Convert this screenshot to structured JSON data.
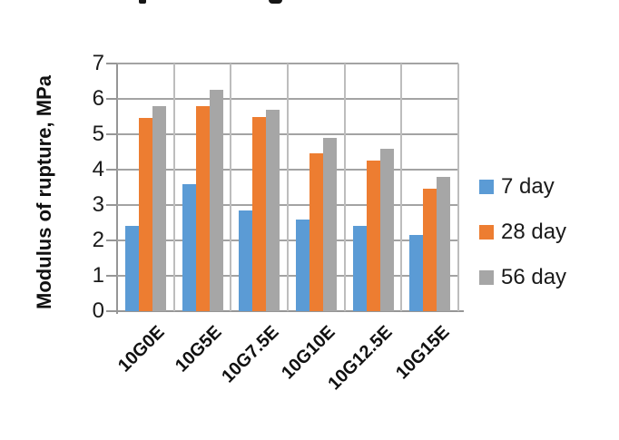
{
  "figure": {
    "background": "#ffffff"
  },
  "chart_data": {
    "type": "bar",
    "title": "",
    "xlabel": "",
    "ylabel": "Modulus of rupture, MPa",
    "categories": [
      "10G0E",
      "10G5E",
      "10G7.5E",
      "10G10E",
      "10G12.5E",
      "10G15E"
    ],
    "series": [
      {
        "name": "7 day",
        "color": "#5B9BD5",
        "values": [
          2.4,
          3.6,
          2.85,
          2.6,
          2.4,
          2.15
        ]
      },
      {
        "name": "28 day",
        "color": "#ED7D31",
        "values": [
          5.45,
          5.8,
          5.5,
          4.45,
          4.25,
          3.45
        ]
      },
      {
        "name": "56 day",
        "color": "#A6A6A6",
        "values": [
          5.8,
          6.25,
          5.7,
          4.9,
          4.6,
          3.8
        ]
      }
    ],
    "ylim": [
      0,
      7
    ],
    "yticks": [
      0,
      1,
      2,
      3,
      4,
      5,
      6,
      7
    ],
    "grid": true,
    "legend_position": "right",
    "colors": {
      "gridline_horizontal": "#A3A3A3",
      "gridline_vertical": "#BDBDBD",
      "axis": "#969696",
      "text": "#1A1A1A"
    }
  }
}
